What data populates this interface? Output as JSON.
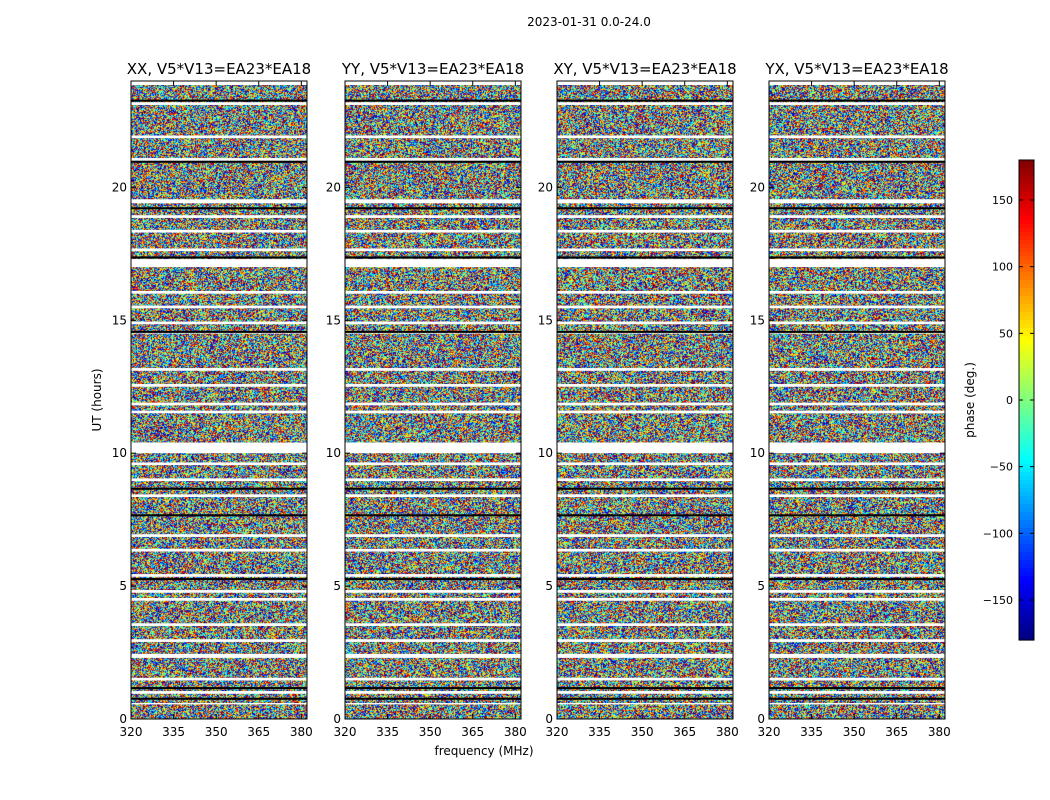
{
  "chart_data": {
    "type": "heatmap",
    "title": "2023-01-31 0.0-24.0",
    "xlabel": "frequency (MHz)",
    "ylabel": "UT (hours)",
    "xlim": [
      320,
      382
    ],
    "ylim": [
      0,
      24
    ],
    "xticks": [
      320,
      335,
      350,
      365,
      380
    ],
    "yticks": [
      0,
      5,
      10,
      15,
      20
    ],
    "panels": [
      {
        "title": "XX, V5*V13=EA23*EA18",
        "polarization": "XX",
        "baseline": "V5*V13=EA23*EA18"
      },
      {
        "title": "YY, V5*V13=EA23*EA18",
        "polarization": "YY",
        "baseline": "V5*V13=EA23*EA18"
      },
      {
        "title": "XY, V5*V13=EA23*EA18",
        "polarization": "XY",
        "baseline": "V5*V13=EA23*EA18"
      },
      {
        "title": "YX, V5*V13=EA23*EA18",
        "polarization": "YX",
        "baseline": "V5*V13=EA23*EA18"
      }
    ],
    "colorbar": {
      "label": "phase (deg.)",
      "range": [
        -180,
        180
      ],
      "ticks": [
        -150,
        -100,
        -50,
        0,
        50,
        100,
        150
      ],
      "tick_labels": [
        "−150",
        "−100",
        "−50",
        "0",
        "50",
        "100",
        "150"
      ],
      "colormap": "jet"
    },
    "flagged_ut_bands": [
      [
        23.85,
        24.0
      ],
      [
        23.1,
        23.2
      ],
      [
        21.85,
        21.95
      ],
      [
        21.0,
        21.1
      ],
      [
        19.4,
        19.55
      ],
      [
        18.85,
        18.95
      ],
      [
        18.3,
        18.4
      ],
      [
        17.6,
        17.7
      ],
      [
        17.0,
        17.3
      ],
      [
        16.0,
        16.1
      ],
      [
        15.45,
        15.55
      ],
      [
        14.85,
        14.95
      ],
      [
        14.5,
        14.55
      ],
      [
        13.1,
        13.2
      ],
      [
        12.5,
        12.6
      ],
      [
        11.8,
        11.9
      ],
      [
        11.5,
        11.6
      ],
      [
        10.0,
        10.4
      ],
      [
        9.55,
        9.65
      ],
      [
        8.95,
        9.05
      ],
      [
        8.35,
        8.45
      ],
      [
        6.85,
        6.95
      ],
      [
        6.3,
        6.4
      ],
      [
        5.35,
        5.45
      ],
      [
        4.75,
        4.85
      ],
      [
        4.45,
        4.55
      ],
      [
        3.5,
        3.6
      ],
      [
        2.9,
        3.0
      ],
      [
        2.3,
        2.45
      ],
      [
        1.45,
        1.55
      ],
      [
        0.95,
        1.05
      ],
      [
        0.55,
        0.6
      ]
    ],
    "dark_ut_lines": [
      23.3,
      21.0,
      19.25,
      17.4,
      14.6,
      8.7,
      7.7,
      5.3,
      1.2,
      0.8
    ]
  }
}
